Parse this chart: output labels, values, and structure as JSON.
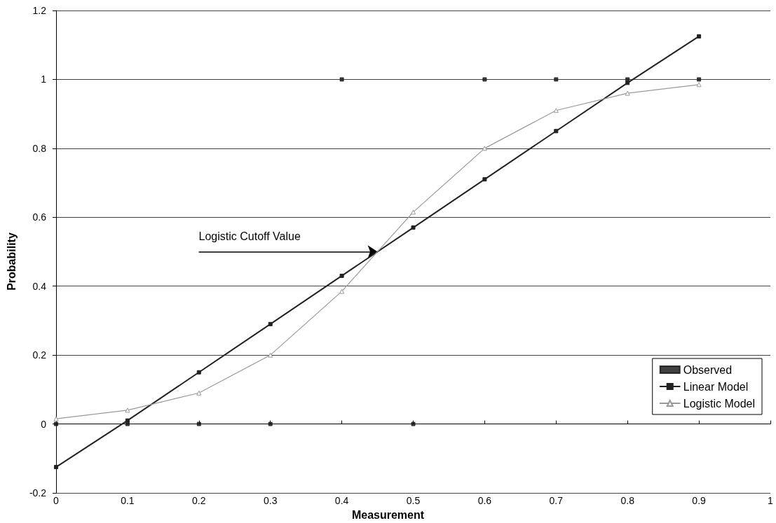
{
  "chart_data": {
    "type": "line",
    "xlabel": "Measurement",
    "ylabel": "Probability",
    "x": [
      0,
      0.1,
      0.2,
      0.3,
      0.4,
      0.5,
      0.6,
      0.7,
      0.8,
      0.9
    ],
    "series": [
      {
        "name": "Observed",
        "type": "scatter",
        "color": "#111111",
        "marker": "square",
        "values": [
          0,
          0,
          0,
          0,
          1,
          0,
          1,
          1,
          1,
          1
        ]
      },
      {
        "name": "Linear Model",
        "color": "#222222",
        "marker": "square",
        "line_style": "solid",
        "values": [
          -0.125,
          0.01,
          0.15,
          0.29,
          0.43,
          0.57,
          0.71,
          0.85,
          0.99,
          1.125
        ]
      },
      {
        "name": "Logistic Model",
        "color": "#999999",
        "marker": "triangle",
        "line_style": "solid",
        "values": [
          0.015,
          0.04,
          0.09,
          0.2,
          0.385,
          0.615,
          0.8,
          0.91,
          0.96,
          0.985
        ]
      }
    ],
    "xlim": [
      0,
      1
    ],
    "xticks": [
      0,
      0.1,
      0.2,
      0.3,
      0.4,
      0.5,
      0.6,
      0.7,
      0.8,
      0.9,
      1
    ],
    "ylim": [
      -0.2,
      1.2
    ],
    "yticks": [
      -0.2,
      0,
      0.2,
      0.4,
      0.6,
      0.8,
      1,
      1.2
    ],
    "grid": "y",
    "legend": "bottom right",
    "annotations": [
      {
        "text": "Logistic Cutoff Value",
        "x": 0.45,
        "y": 0.5
      }
    ]
  }
}
